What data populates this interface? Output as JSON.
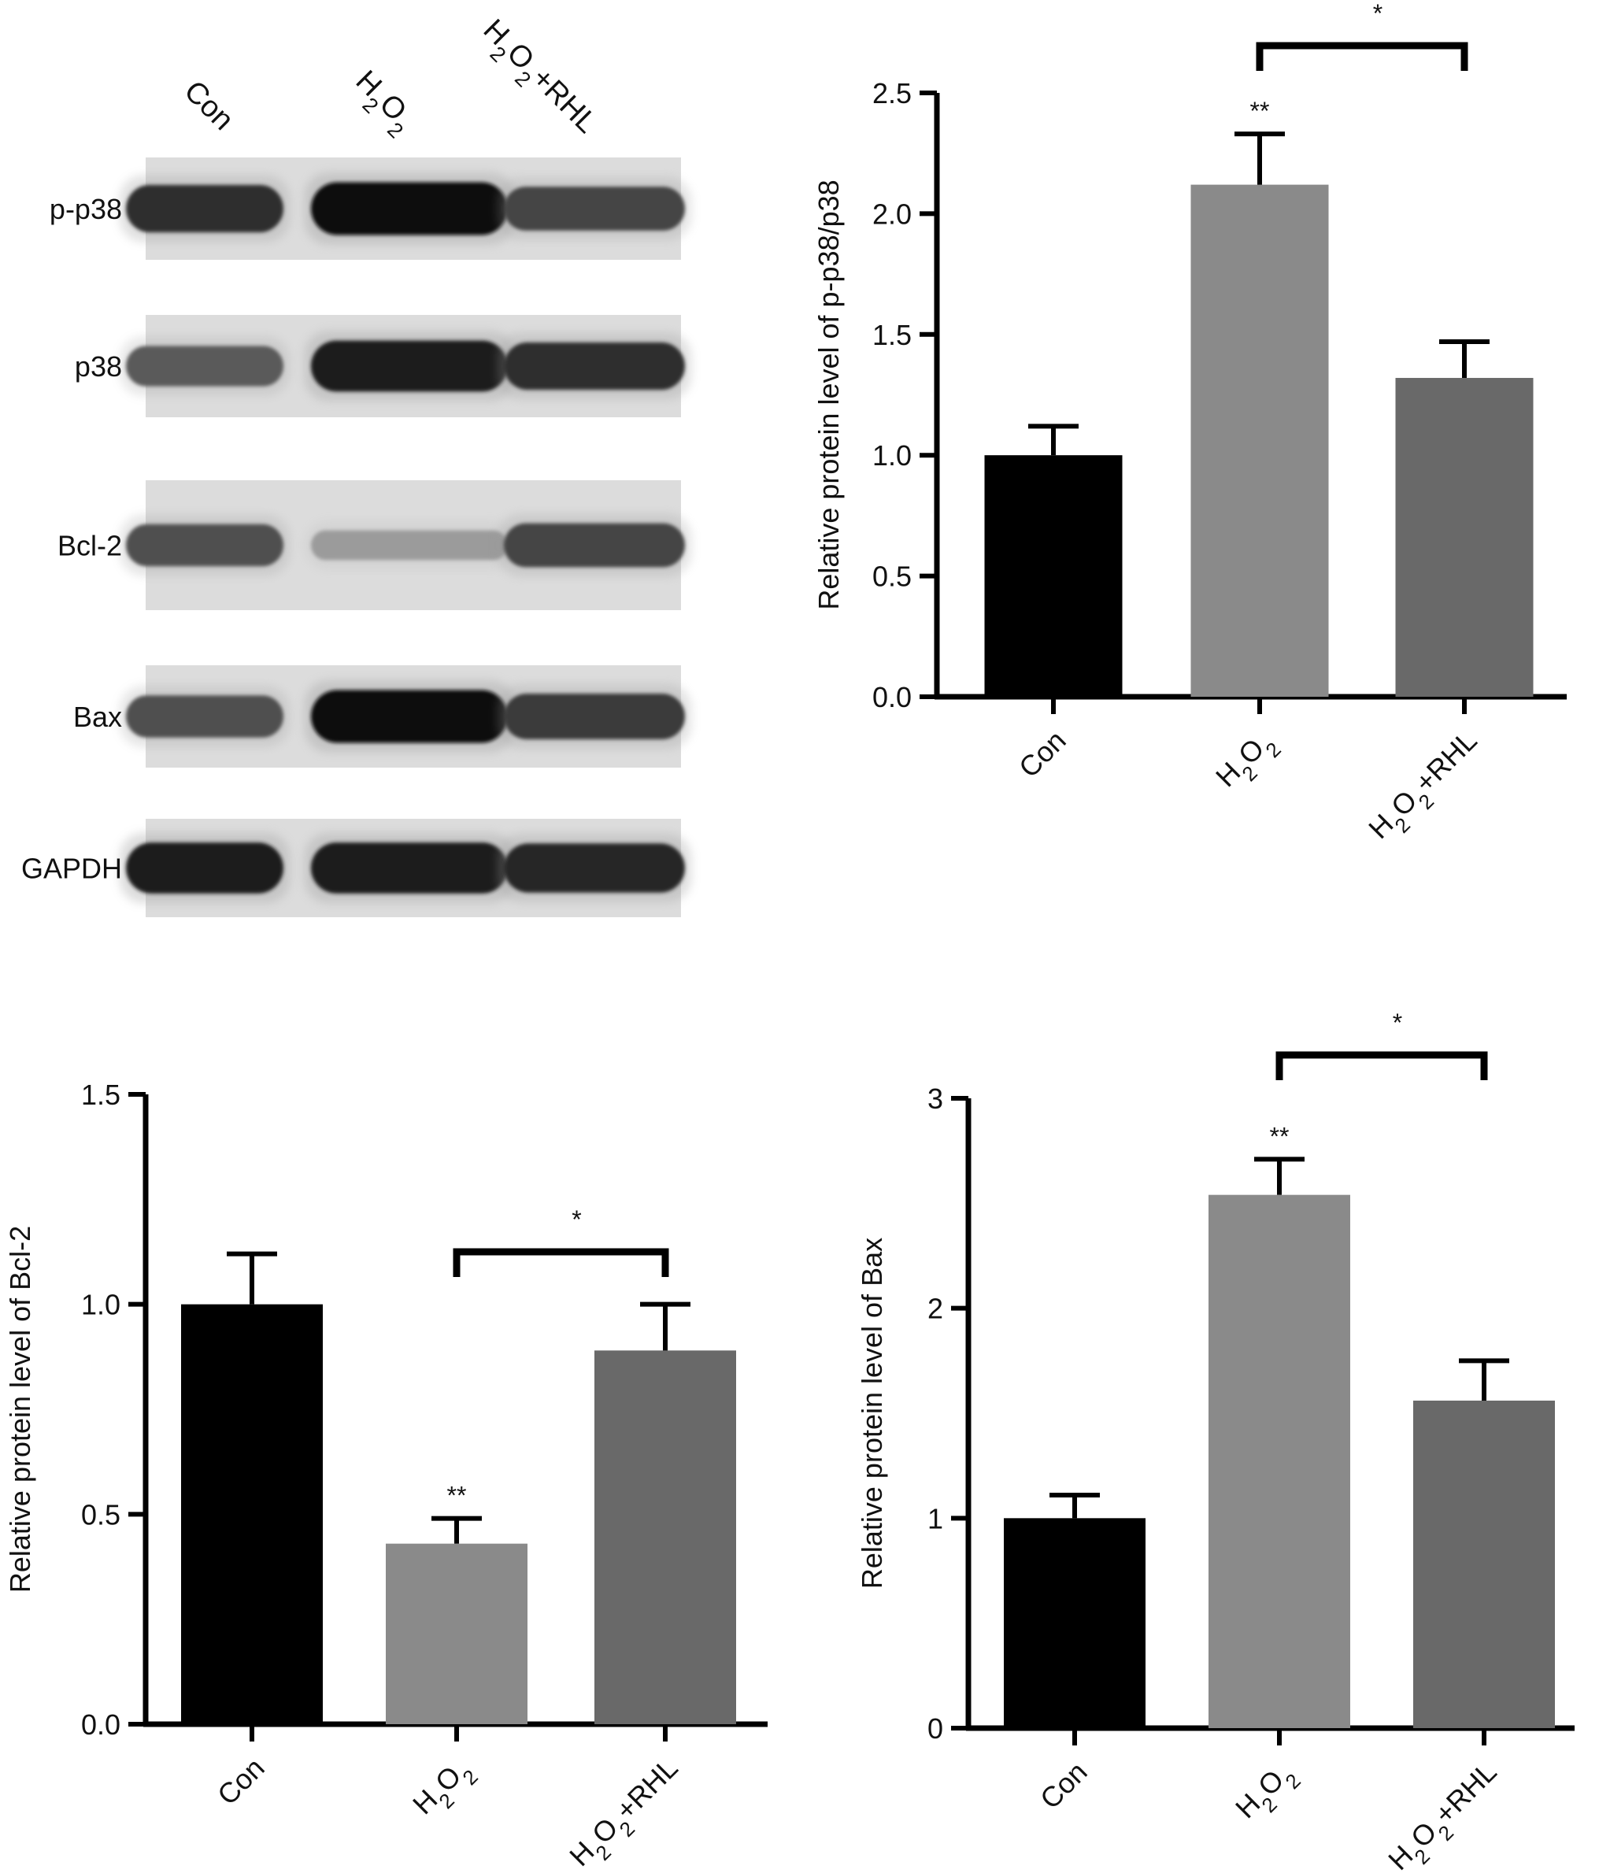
{
  "western_blot": {
    "lanes": [
      {
        "base": "Con",
        "sub": "",
        "rest": ""
      },
      {
        "base": "H",
        "sub": "2",
        "rest": "O",
        "sub2": "2",
        "rest2": ""
      },
      {
        "base": "H",
        "sub": "2",
        "rest": "O",
        "sub2": "2",
        "rest2": "+RHL"
      }
    ],
    "rows": [
      {
        "label": "p-p38",
        "intensity": [
          0.85,
          1.0,
          0.75
        ]
      },
      {
        "label": "p38",
        "intensity": [
          0.65,
          0.95,
          0.85
        ]
      },
      {
        "label": "Bcl-2",
        "intensity": [
          0.7,
          0.35,
          0.75
        ]
      },
      {
        "label": "Bax",
        "intensity": [
          0.7,
          1.0,
          0.8
        ]
      },
      {
        "label": "GAPDH",
        "intensity": [
          0.95,
          0.95,
          0.9
        ]
      }
    ]
  },
  "chart_data": [
    {
      "type": "bar",
      "categories": [
        "Con",
        "H2O2",
        "H2O2+RHL"
      ],
      "values": [
        1.0,
        2.12,
        1.32
      ],
      "errors": [
        0.12,
        0.21,
        0.15
      ],
      "colors": [
        "#000000",
        "#8a8a8a",
        "#696969"
      ],
      "ylabel": "Relative protein level of p-p38/p38",
      "ylim": [
        0,
        2.5
      ],
      "yticks": [
        "0.0",
        "0.5",
        "1.0",
        "1.5",
        "2.0",
        "2.5"
      ],
      "annotations": [
        {
          "text": "**",
          "category": 1
        }
      ],
      "brackets": [
        {
          "from": 1,
          "to": 2,
          "text": "*"
        }
      ]
    },
    {
      "type": "bar",
      "categories": [
        "Con",
        "H2O2",
        "H2O2+RHL"
      ],
      "values": [
        1.0,
        0.43,
        0.89
      ],
      "errors": [
        0.12,
        0.06,
        0.11
      ],
      "colors": [
        "#000000",
        "#8a8a8a",
        "#696969"
      ],
      "ylabel": "Relative protein level of Bcl-2",
      "ylim": [
        0,
        1.5
      ],
      "yticks": [
        "0.0",
        "0.5",
        "1.0",
        "1.5"
      ],
      "annotations": [
        {
          "text": "**",
          "category": 1
        }
      ],
      "brackets": [
        {
          "from": 1,
          "to": 2,
          "text": "*"
        }
      ]
    },
    {
      "type": "bar",
      "categories": [
        "Con",
        "H2O2",
        "H2O2+RHL"
      ],
      "values": [
        1.0,
        2.54,
        1.56
      ],
      "errors": [
        0.11,
        0.17,
        0.19
      ],
      "colors": [
        "#000000",
        "#8a8a8a",
        "#696969"
      ],
      "ylabel": "Relative protein level of Bax",
      "ylim": [
        0,
        3
      ],
      "yticks": [
        "0",
        "1",
        "2",
        "3"
      ],
      "annotations": [
        {
          "text": "**",
          "category": 1
        }
      ],
      "brackets": [
        {
          "from": 1,
          "to": 2,
          "text": "*"
        }
      ]
    }
  ]
}
